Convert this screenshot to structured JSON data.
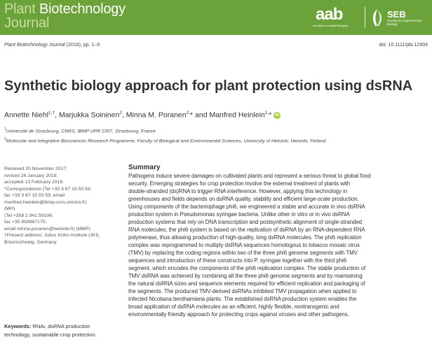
{
  "header": {
    "journal_word1": "Plant",
    "journal_word2": " Biotechnology",
    "journal_word3": "Journal",
    "aab_logo_text": "aab",
    "aab_logo_subtext": "Association of Applied Biologists",
    "seb_logo_text": "SEB",
    "seb_logo_subtext": "Society for Experimental Biology",
    "color": "#6ba33a"
  },
  "citation": {
    "journal": "Plant Biotechnology Journal",
    "rest": " (2018), pp. 1–9",
    "doi": "doi: 10.1111/pbi.12904"
  },
  "article": {
    "title": "Synthetic biology approach for plant protection using dsRNA"
  },
  "authors": [
    {
      "name": "Annette Niehl",
      "sup": "1,†",
      "sep": ", "
    },
    {
      "name": "Marjukka Soininen",
      "sup": "2",
      "sep": ", "
    },
    {
      "name": "Minna M. Poranen",
      "sup": "2,",
      "star": "*",
      "sep": " and "
    },
    {
      "name": "Manfred Heinlein",
      "sup": "1,",
      "star": "*",
      "sep": ""
    }
  ],
  "affiliations": [
    {
      "sup": "1",
      "text": "Université de Strasbourg, CNRS, IBMP UPR 2357, Strasbourg, France"
    },
    {
      "sup": "2",
      "text": "Molecular and Integrative Biosciences Research Programme, Faculty of Biological and Environmental Sciences, University of Helsinki, Helsinki, Finland"
    }
  ],
  "sidebar": {
    "received": "Received 20 November 2017;",
    "revised": "revised 26 January 2018;",
    "accepted": "accepted 13 February 2018.",
    "corr1": "*Correspondence (Tel +33 3 67 15 53 59;",
    "corr2": "fax +33 3 67 15 53 59; email",
    "corr3": "manfred.heinlein@ibmp-cnrs.unistra.fr)",
    "corr4": "(MH)",
    "corr5": "(Tel +358 2 941 59106;",
    "corr6": "fax +35 893867170;",
    "corr7": "email minna.poranen@helsinki.fi) (MMP)",
    "present1": "†Present address: Julius Kühn-Institute (JKI),",
    "present2": "Braunschweig, Germany."
  },
  "keywords": {
    "label": "Keywords:",
    "text": " RNAi, dsRNA production technology, sustainable crop protection."
  },
  "summary": {
    "heading": "Summary",
    "lines": [
      "Pathogens induce severe damages on cultivated plants and represent a serious threat to global food",
      "security. Emerging strategies for crop protection involve the external treatment of plants with",
      "double-stranded (ds)RNA to trigger RNA interference. However, applying this technology in",
      "greenhouses and fields depends on dsRNA quality, stability and efficient large-scale production.",
      "Using components of the bacteriophage phi6, we engineered a stable and accurate in vivo dsRNA",
      "production system in Pseudomonas syringae bacteria. Unlike other in vitro or in vivo dsRNA",
      "production systems that rely on DNA transcription and postsynthetic alignment of single-stranded",
      "RNA molecules, the phi6 system is based on the replication of dsRNA by an RNA-dependent RNA",
      "polymerase, thus allowing production of high-quality, long dsRNA molecules. The phi6 replication",
      "complex was reprogrammed to multiply dsRNA sequences homologous to tobacco mosaic virus",
      "(TMV) by replacing the coding regions within two of the three phi6 genome segments with TMV",
      "sequences and introduction of these constructs into P. syringae together with the third phi6",
      "segment, which encodes the components of the phi6 replication complex. The stable production of",
      "TMV dsRNA was achieved by combining all the three phi6 genome segments and by maintaining",
      "the natural dsRNA sizes and sequence elements required for efficient replication and packaging of",
      "the segments. The produced TMV-derived dsRNAs inhibited TMV propagation when applied to",
      "infected Nicotiana benthamiana plants. The established dsRNA production system enables the",
      "broad application of dsRNA molecules as an efficient, highly flexible, nontransgenic and",
      "environmentally friendly approach for protecting crops against viruses and other pathogens."
    ]
  }
}
